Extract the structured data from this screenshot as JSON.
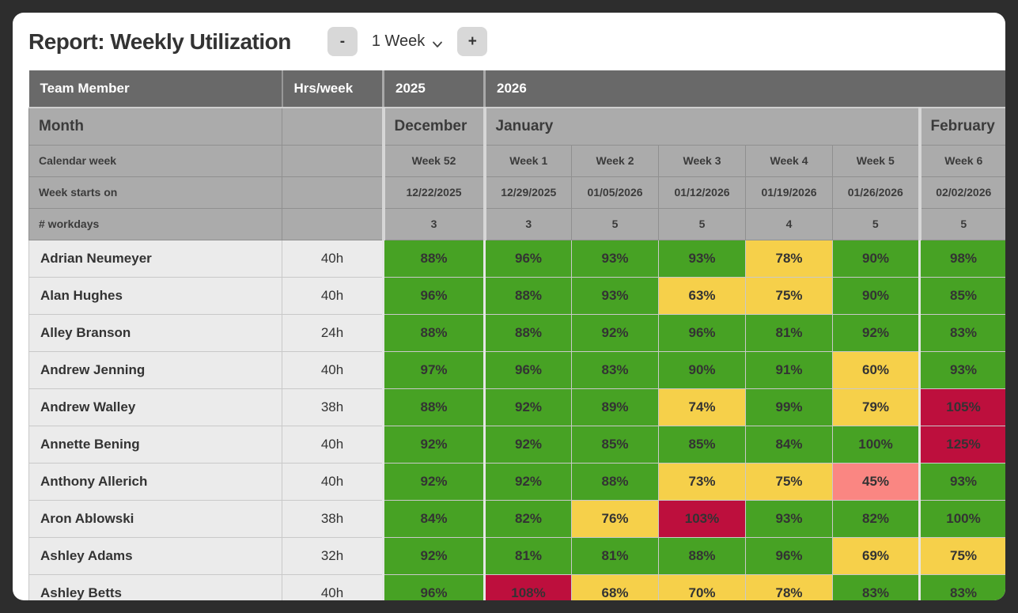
{
  "header": {
    "title": "Report: Weekly Utilization",
    "controls": {
      "minus_label": "-",
      "interval_value": "1 Week",
      "plus_label": "+"
    }
  },
  "table": {
    "top_header": {
      "team_member": "Team Member",
      "hrs_week": "Hrs/week",
      "years": [
        {
          "label": "2025",
          "span": 1
        },
        {
          "label": "2026",
          "span": 6
        }
      ]
    },
    "month_row": {
      "label": "Month",
      "months": [
        {
          "label": "December",
          "span": 1
        },
        {
          "label": "January",
          "span": 5
        },
        {
          "label": "February",
          "span": 1
        }
      ]
    },
    "calendar_week_row": {
      "label": "Calendar week",
      "weeks": [
        "Week 52",
        "Week 1",
        "Week 2",
        "Week 3",
        "Week 4",
        "Week 5",
        "Week 6"
      ]
    },
    "week_starts_row": {
      "label": "Week starts on",
      "dates": [
        "12/22/2025",
        "12/29/2025",
        "01/05/2026",
        "01/12/2026",
        "01/19/2026",
        "01/26/2026",
        "02/02/2026"
      ]
    },
    "workdays_row": {
      "label": "# workdays",
      "values": [
        "3",
        "3",
        "5",
        "5",
        "4",
        "5",
        "5"
      ]
    },
    "members": [
      {
        "name": "Adrian Neumeyer",
        "hours": "40h",
        "utilization": [
          {
            "value": "88%",
            "status": "green"
          },
          {
            "value": "96%",
            "status": "green"
          },
          {
            "value": "93%",
            "status": "green"
          },
          {
            "value": "93%",
            "status": "green"
          },
          {
            "value": "78%",
            "status": "yellow"
          },
          {
            "value": "90%",
            "status": "green"
          },
          {
            "value": "98%",
            "status": "green"
          }
        ]
      },
      {
        "name": "Alan Hughes",
        "hours": "40h",
        "utilization": [
          {
            "value": "96%",
            "status": "green"
          },
          {
            "value": "88%",
            "status": "green"
          },
          {
            "value": "93%",
            "status": "green"
          },
          {
            "value": "63%",
            "status": "yellow"
          },
          {
            "value": "75%",
            "status": "yellow"
          },
          {
            "value": "90%",
            "status": "green"
          },
          {
            "value": "85%",
            "status": "green"
          }
        ]
      },
      {
        "name": "Alley Branson",
        "hours": "24h",
        "utilization": [
          {
            "value": "88%",
            "status": "green"
          },
          {
            "value": "88%",
            "status": "green"
          },
          {
            "value": "92%",
            "status": "green"
          },
          {
            "value": "96%",
            "status": "green"
          },
          {
            "value": "81%",
            "status": "green"
          },
          {
            "value": "92%",
            "status": "green"
          },
          {
            "value": "83%",
            "status": "green"
          }
        ]
      },
      {
        "name": "Andrew Jenning",
        "hours": "40h",
        "utilization": [
          {
            "value": "97%",
            "status": "green"
          },
          {
            "value": "96%",
            "status": "green"
          },
          {
            "value": "83%",
            "status": "green"
          },
          {
            "value": "90%",
            "status": "green"
          },
          {
            "value": "91%",
            "status": "green"
          },
          {
            "value": "60%",
            "status": "yellow"
          },
          {
            "value": "93%",
            "status": "green"
          }
        ]
      },
      {
        "name": "Andrew Walley",
        "hours": "38h",
        "utilization": [
          {
            "value": "88%",
            "status": "green"
          },
          {
            "value": "92%",
            "status": "green"
          },
          {
            "value": "89%",
            "status": "green"
          },
          {
            "value": "74%",
            "status": "yellow"
          },
          {
            "value": "99%",
            "status": "green"
          },
          {
            "value": "79%",
            "status": "yellow"
          },
          {
            "value": "105%",
            "status": "red"
          }
        ]
      },
      {
        "name": "Annette Bening",
        "hours": "40h",
        "utilization": [
          {
            "value": "92%",
            "status": "green"
          },
          {
            "value": "92%",
            "status": "green"
          },
          {
            "value": "85%",
            "status": "green"
          },
          {
            "value": "85%",
            "status": "green"
          },
          {
            "value": "84%",
            "status": "green"
          },
          {
            "value": "100%",
            "status": "green"
          },
          {
            "value": "125%",
            "status": "red"
          }
        ]
      },
      {
        "name": "Anthony Allerich",
        "hours": "40h",
        "utilization": [
          {
            "value": "92%",
            "status": "green"
          },
          {
            "value": "92%",
            "status": "green"
          },
          {
            "value": "88%",
            "status": "green"
          },
          {
            "value": "73%",
            "status": "yellow"
          },
          {
            "value": "75%",
            "status": "yellow"
          },
          {
            "value": "45%",
            "status": "salmon"
          },
          {
            "value": "93%",
            "status": "green"
          }
        ]
      },
      {
        "name": "Aron Ablowski",
        "hours": "38h",
        "utilization": [
          {
            "value": "84%",
            "status": "green"
          },
          {
            "value": "82%",
            "status": "green"
          },
          {
            "value": "76%",
            "status": "yellow"
          },
          {
            "value": "103%",
            "status": "red"
          },
          {
            "value": "93%",
            "status": "green"
          },
          {
            "value": "82%",
            "status": "green"
          },
          {
            "value": "100%",
            "status": "green"
          }
        ]
      },
      {
        "name": "Ashley Adams",
        "hours": "32h",
        "utilization": [
          {
            "value": "92%",
            "status": "green"
          },
          {
            "value": "81%",
            "status": "green"
          },
          {
            "value": "81%",
            "status": "green"
          },
          {
            "value": "88%",
            "status": "green"
          },
          {
            "value": "96%",
            "status": "green"
          },
          {
            "value": "69%",
            "status": "yellow"
          },
          {
            "value": "75%",
            "status": "yellow"
          }
        ]
      },
      {
        "name": "Ashley Betts",
        "hours": "40h",
        "utilization": [
          {
            "value": "96%",
            "status": "green"
          },
          {
            "value": "108%",
            "status": "red"
          },
          {
            "value": "68%",
            "status": "yellow"
          },
          {
            "value": "70%",
            "status": "yellow"
          },
          {
            "value": "78%",
            "status": "yellow"
          },
          {
            "value": "83%",
            "status": "green"
          },
          {
            "value": "83%",
            "status": "green"
          }
        ]
      }
    ]
  },
  "status_colors": {
    "green": "#47a224",
    "yellow": "#f6d04a",
    "red": "#bd0f3d",
    "salmon": "#fa8682"
  }
}
